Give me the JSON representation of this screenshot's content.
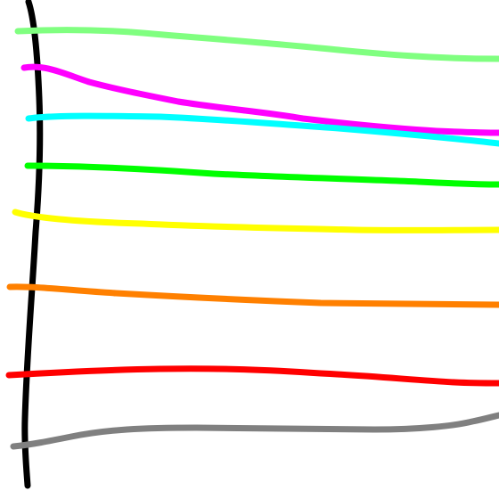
{
  "canvas": {
    "background": "#ffffff"
  },
  "strokes": [
    {
      "name": "black-vertical-stroke",
      "color": "#000000"
    },
    {
      "name": "light-green-stroke",
      "color": "#80ff80"
    },
    {
      "name": "magenta-stroke",
      "color": "#ff00ff"
    },
    {
      "name": "cyan-stroke",
      "color": "#00ffff"
    },
    {
      "name": "green-stroke",
      "color": "#00ff00"
    },
    {
      "name": "yellow-stroke",
      "color": "#ffff00"
    },
    {
      "name": "orange-stroke",
      "color": "#ff8000"
    },
    {
      "name": "red-stroke",
      "color": "#ff0000"
    },
    {
      "name": "gray-stroke",
      "color": "#808080"
    }
  ]
}
